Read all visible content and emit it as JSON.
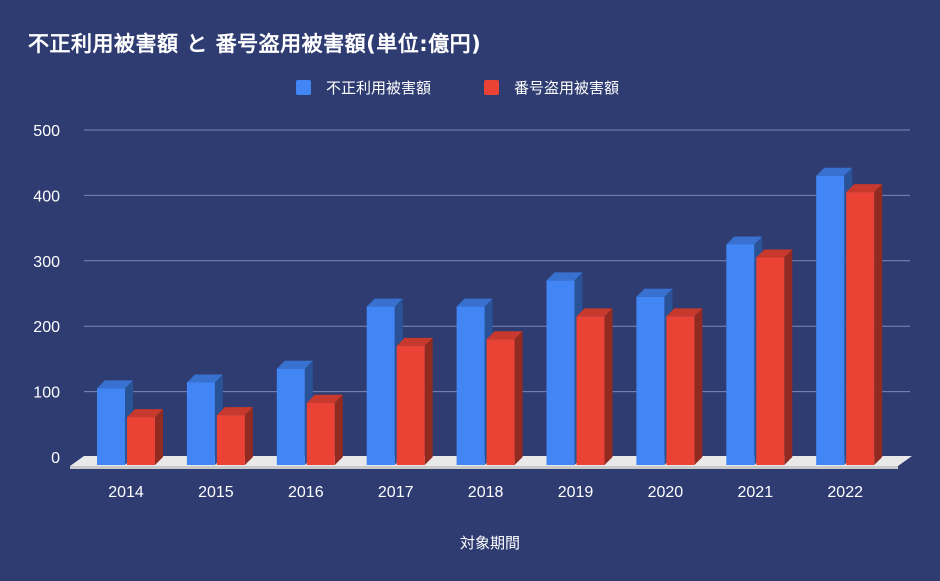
{
  "chart_data": {
    "type": "bar",
    "title": "不正利用被害額 と 番号盗用被害額(単位:億円)",
    "xlabel": "対象期間",
    "ylabel": "",
    "categories": [
      "2014",
      "2015",
      "2016",
      "2017",
      "2018",
      "2019",
      "2020",
      "2021",
      "2022"
    ],
    "series": [
      {
        "name": "不正利用被害額",
        "color": "#4285f4",
        "values": [
          105,
          114,
          135,
          230,
          230,
          270,
          245,
          325,
          430
        ]
      },
      {
        "name": "番号盗用被害額",
        "color": "#ea4335",
        "values": [
          61,
          64,
          83,
          170,
          180,
          215,
          215,
          305,
          405
        ]
      }
    ],
    "ylim": [
      0,
      500
    ],
    "yticks": [
      0,
      100,
      200,
      300,
      400,
      500
    ],
    "legend": "top-center",
    "grid": true,
    "style": "3d"
  }
}
